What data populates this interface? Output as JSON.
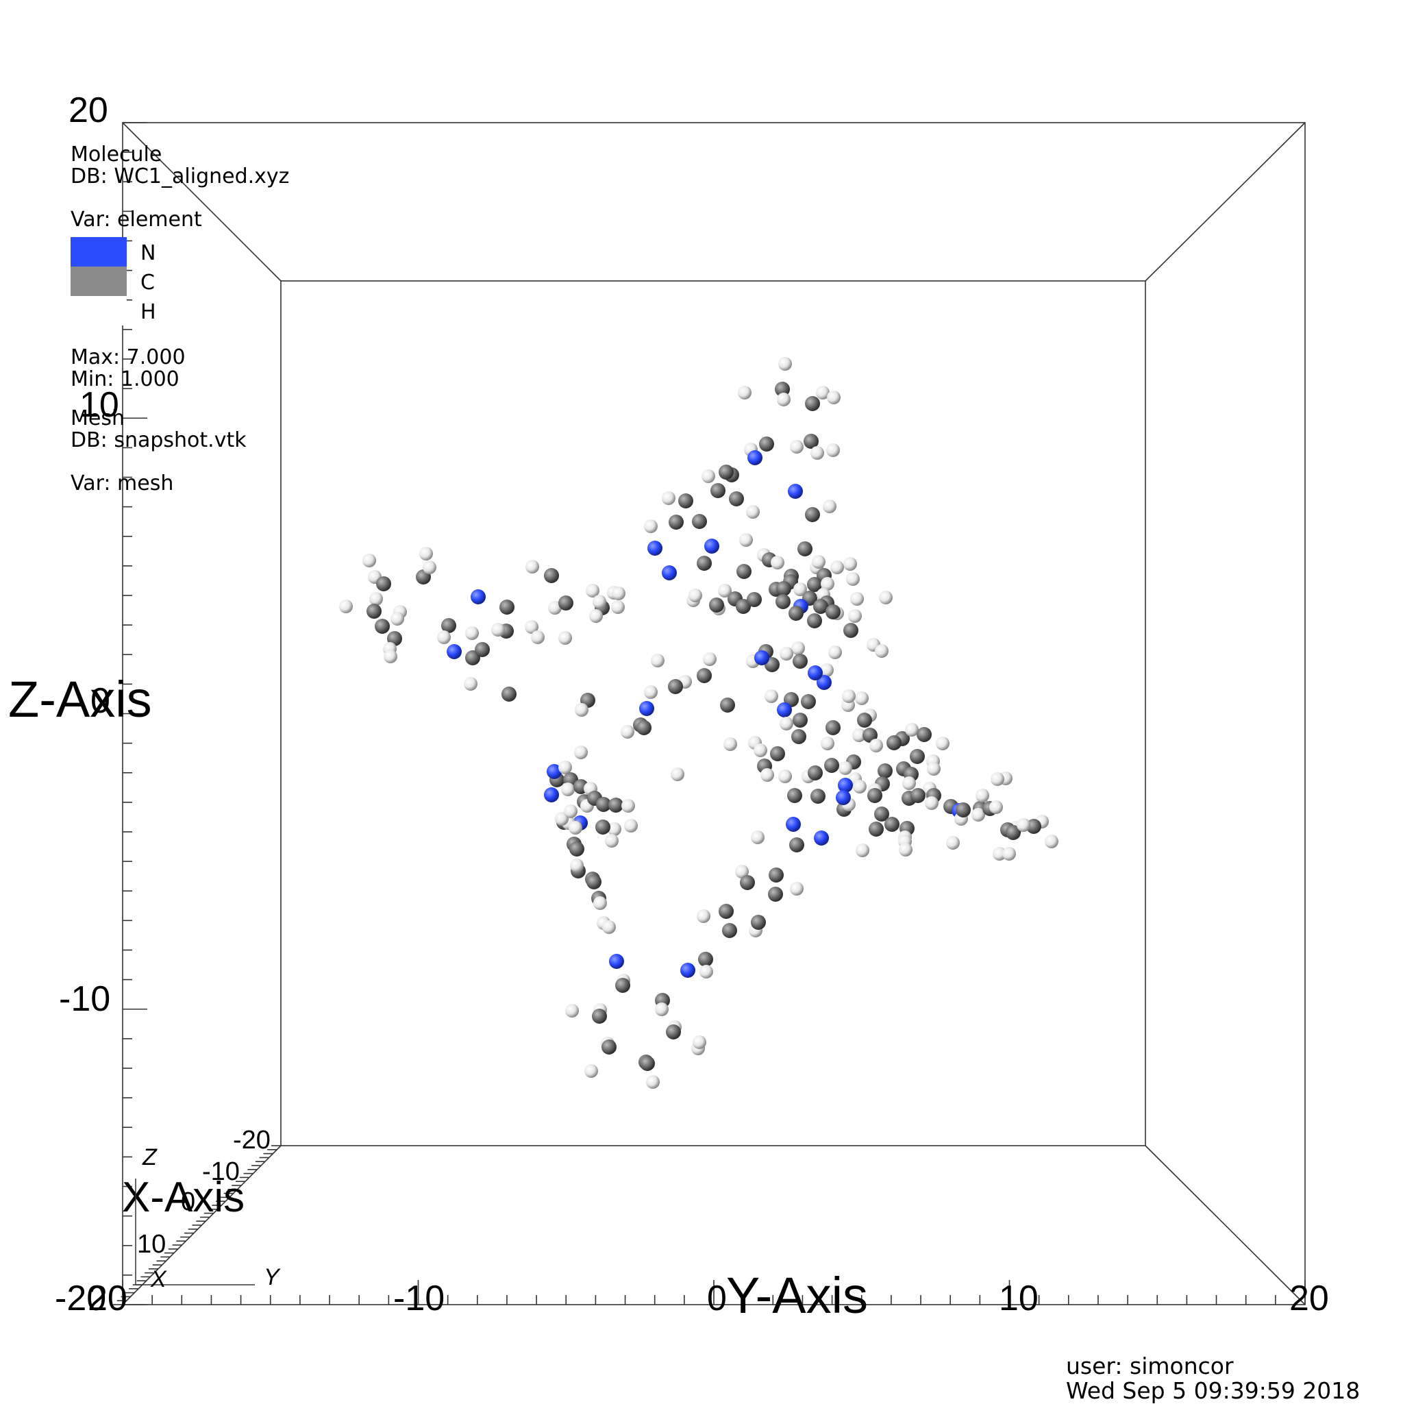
{
  "legend": {
    "molecule_title": "Molecule",
    "molecule_db": "DB: WC1_aligned.xyz",
    "molecule_var": "Var: element",
    "entries": [
      {
        "label": "N",
        "color": "#2b4bff"
      },
      {
        "label": "C",
        "color": "#8c8c8c"
      },
      {
        "label": "H",
        "color": "#ffffff"
      }
    ],
    "max": "Max:  7.000",
    "min": "Min:  1.000",
    "mesh_title": "Mesh",
    "mesh_db": "DB: snapshot.vtk",
    "mesh_var": "Var: mesh"
  },
  "axes": {
    "z_title": "Z-Axis",
    "y_title": "Y-Axis",
    "x_title": "X-Axis",
    "z_ticks": [
      "20",
      "10",
      "0",
      "-10",
      "-20"
    ],
    "y_ticks": [
      "-20",
      "-10",
      "0",
      "10",
      "20"
    ],
    "x_ticks": [
      "-20",
      "-10",
      "0",
      "10",
      "20"
    ],
    "triad": {
      "z": "Z",
      "x": "X",
      "y": "Y"
    }
  },
  "footer": {
    "user": "user: simoncor",
    "date": "Wed Sep  5 09:39:59 2018"
  },
  "colors": {
    "nitrogen": "#2b4bff",
    "carbon": "#6e6e6e",
    "hydrogen": "#f2f2f2"
  }
}
